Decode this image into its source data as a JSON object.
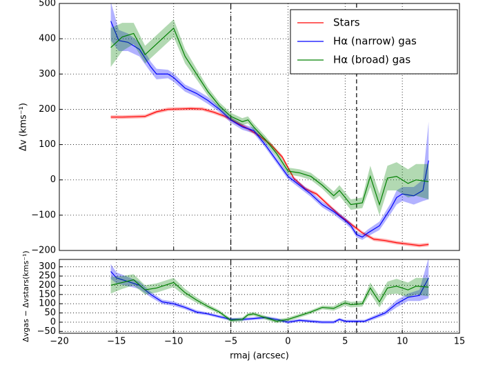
{
  "chart_data": [
    {
      "type": "line",
      "ylabel": "Δv (kms⁻¹)",
      "xlim": [
        -20,
        15
      ],
      "xticks": [
        -20,
        -15,
        -10,
        -5,
        0,
        5,
        10,
        15
      ],
      "ylim": [
        -200,
        500
      ],
      "yticks": [
        {
          "value": -200,
          "label": "−200"
        },
        {
          "value": -100,
          "label": "−100"
        },
        0,
        100,
        200,
        300,
        400,
        500
      ],
      "grid": true,
      "legend": "upper right",
      "vlines": [
        {
          "x": -5,
          "style": "dashdot"
        },
        {
          "x": 6,
          "style": "dashed"
        }
      ],
      "series": [
        {
          "name": "Stars",
          "color": "#ff0000",
          "x": [
            -15.5,
            -14.5,
            -13.5,
            -12.5,
            -11.5,
            -10.5,
            -9.5,
            -8.5,
            -7.5,
            -6.5,
            -5.5,
            -4.5,
            -3.5,
            -2.5,
            -1.5,
            -0.5,
            0.5,
            1.5,
            2.5,
            3.5,
            4.5,
            5.5,
            6.5,
            7.5,
            8.5,
            9.5,
            10.5,
            11.5,
            12.3
          ],
          "values": [
            178,
            178,
            179,
            180,
            193,
            200,
            201,
            202,
            201,
            192,
            180,
            162,
            145,
            125,
            100,
            65,
            5,
            -25,
            -40,
            -70,
            -100,
            -125,
            -150,
            -168,
            -172,
            -178,
            -182,
            -186,
            -183
          ],
          "errors": [
            5,
            5,
            5,
            5,
            5,
            5,
            5,
            5,
            5,
            5,
            5,
            5,
            5,
            5,
            5,
            5,
            5,
            5,
            5,
            5,
            5,
            5,
            5,
            5,
            5,
            5,
            5,
            5,
            5
          ]
        },
        {
          "name": "Hα (narrow) gas",
          "color": "#0000ff",
          "x": [
            -15.5,
            -14.8,
            -14,
            -13,
            -12,
            -11.5,
            -10.5,
            -10,
            -9,
            -8,
            -7,
            -6,
            -5,
            -4,
            -3,
            -2,
            -1,
            0,
            1,
            2,
            3,
            4,
            5,
            5.5,
            6,
            6.5,
            7,
            8,
            9,
            9.5,
            10,
            11,
            11.8,
            12.3
          ],
          "values": [
            450,
            395,
            390,
            370,
            320,
            300,
            300,
            290,
            260,
            245,
            225,
            200,
            170,
            150,
            140,
            100,
            55,
            10,
            -15,
            -40,
            -70,
            -90,
            -115,
            -130,
            -155,
            -162,
            -150,
            -130,
            -80,
            -50,
            -40,
            -45,
            -30,
            55
          ],
          "errors": [
            55,
            30,
            25,
            20,
            15,
            15,
            12,
            12,
            10,
            10,
            10,
            8,
            8,
            8,
            8,
            8,
            8,
            8,
            8,
            8,
            8,
            8,
            8,
            8,
            8,
            8,
            10,
            12,
            15,
            20,
            20,
            25,
            30,
            110
          ]
        },
        {
          "name": "Hα (broad) gas",
          "color": "#008000",
          "x": [
            -15.5,
            -14.5,
            -13.5,
            -12.5,
            -11.5,
            -10,
            -9,
            -8,
            -7,
            -6,
            -5,
            -4,
            -3.5,
            -3,
            -2,
            -1,
            0,
            1,
            2,
            3,
            4,
            4.5,
            5,
            5.5,
            6.5,
            7.2,
            8,
            8.7,
            9.5,
            10.5,
            11.2,
            12.3
          ],
          "values": [
            375,
            405,
            415,
            355,
            385,
            430,
            350,
            300,
            250,
            210,
            180,
            165,
            170,
            150,
            115,
            75,
            25,
            20,
            10,
            -15,
            -45,
            -30,
            -50,
            -70,
            -65,
            10,
            -70,
            5,
            10,
            -10,
            0,
            -5
          ],
          "errors": [
            55,
            40,
            30,
            25,
            25,
            25,
            20,
            15,
            12,
            10,
            10,
            10,
            10,
            10,
            10,
            10,
            10,
            10,
            10,
            10,
            12,
            15,
            15,
            15,
            15,
            30,
            30,
            35,
            40,
            40,
            45,
            50
          ]
        }
      ]
    },
    {
      "type": "line",
      "ylabel": "Δvgas − Δvstars(kms⁻¹)",
      "xlabel": "rmaj (arcsec)",
      "xlim": [
        -20,
        15
      ],
      "xticks": [
        {
          "value": -20,
          "label": "−20"
        },
        {
          "value": -15,
          "label": "−15"
        },
        {
          "value": -10,
          "label": "−10"
        },
        {
          "value": -5,
          "label": "−5"
        },
        0,
        5,
        10,
        15
      ],
      "ylim": [
        -60,
        340
      ],
      "yticks": [
        {
          "value": -50,
          "label": "−50"
        },
        0,
        50,
        100,
        150,
        200,
        250,
        300
      ],
      "grid": true,
      "vlines": [
        {
          "x": -5,
          "style": "dashdot"
        },
        {
          "x": 6,
          "style": "dashed"
        }
      ],
      "series": [
        {
          "color": "#0000ff",
          "x": [
            -15.5,
            -15,
            -14,
            -13,
            -12,
            -11,
            -10,
            -9,
            -8,
            -7,
            -6,
            -5,
            -4,
            -3,
            -2,
            -1,
            0,
            1,
            2,
            3,
            4,
            4.5,
            5,
            6,
            6.7,
            7.5,
            8.5,
            9.5,
            10.5,
            11.5,
            12.3
          ],
          "values": [
            275,
            240,
            220,
            200,
            150,
            110,
            100,
            80,
            55,
            45,
            30,
            15,
            15,
            20,
            25,
            15,
            0,
            10,
            5,
            0,
            0,
            15,
            5,
            5,
            5,
            25,
            50,
            100,
            135,
            145,
            240
          ],
          "errors": [
            40,
            30,
            25,
            20,
            15,
            12,
            12,
            10,
            10,
            8,
            8,
            8,
            8,
            8,
            8,
            8,
            8,
            8,
            8,
            8,
            8,
            8,
            8,
            8,
            8,
            10,
            12,
            20,
            20,
            30,
            110
          ]
        },
        {
          "color": "#008000",
          "x": [
            -15.5,
            -14.5,
            -13.5,
            -12.5,
            -11.5,
            -10,
            -9,
            -8,
            -7,
            -6,
            -5,
            -4,
            -3.5,
            -3,
            -2,
            -1,
            0,
            1,
            2,
            3,
            4,
            4.5,
            5,
            5.5,
            6.5,
            7.2,
            8,
            8.7,
            9.5,
            10.5,
            11.2,
            12.3
          ],
          "values": [
            200,
            215,
            230,
            175,
            185,
            215,
            160,
            120,
            85,
            55,
            10,
            15,
            40,
            45,
            25,
            5,
            15,
            35,
            55,
            80,
            75,
            90,
            105,
            95,
            100,
            185,
            110,
            185,
            195,
            175,
            195,
            190
          ],
          "errors": [
            45,
            35,
            30,
            25,
            25,
            25,
            20,
            15,
            12,
            10,
            10,
            10,
            10,
            10,
            10,
            10,
            10,
            10,
            10,
            10,
            12,
            15,
            15,
            15,
            15,
            30,
            30,
            35,
            40,
            40,
            45,
            50
          ]
        }
      ]
    }
  ]
}
